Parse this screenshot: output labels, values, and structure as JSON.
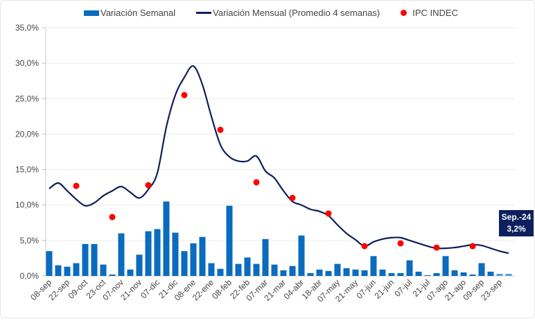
{
  "chart_data": {
    "type": "bar+line+scatter",
    "legend": {
      "placement": "top",
      "bars": "Variación Semanal",
      "line": "Variación Mensual (Promedio 4 semanas)",
      "dots": "IPC INDEC"
    },
    "ylim": [
      0,
      35
    ],
    "yticks": [
      "0,0%",
      "5,0%",
      "10,0%",
      "15,0%",
      "20,0%",
      "25,0%",
      "30,0%",
      "35,0%"
    ],
    "grid": true,
    "xtick_labels": [
      "08-sep",
      "22-sep",
      "09-oct",
      "23-oct",
      "07-nov",
      "21-nov",
      "07-dic",
      "21-dic",
      "08-ene",
      "22-ene",
      "08-feb",
      "22-feb",
      "07-mar",
      "21-mar",
      "04-abr",
      "18-abr",
      "07-may",
      "21-may",
      "07-jun",
      "21-jun",
      "07-jul",
      "21-jul",
      "07-ago",
      "21-ago",
      "09-sep",
      "23-sep"
    ],
    "weekly": [
      3.5,
      1.5,
      1.3,
      1.8,
      4.5,
      4.5,
      1.6,
      0.2,
      6.0,
      0.9,
      3.0,
      6.3,
      6.6,
      10.5,
      6.1,
      3.5,
      4.6,
      5.5,
      1.8,
      1.0,
      9.9,
      1.7,
      2.6,
      1.7,
      5.2,
      1.6,
      0.8,
      1.4,
      5.7,
      0.4,
      0.9,
      0.7,
      1.7,
      1.1,
      0.9,
      0.8,
      2.8,
      0.9,
      0.4,
      0.4,
      2.2,
      0.6,
      0.1,
      0.4,
      2.8,
      0.8,
      0.5,
      0.2,
      1.8,
      0.6,
      0.3,
      0.3
    ],
    "monthly": [
      12.3,
      13.1,
      12.0,
      10.8,
      9.9,
      10.3,
      11.3,
      12.0,
      12.6,
      11.8,
      11.0,
      12.2,
      14.5,
      21.0,
      25.5,
      28.0,
      29.6,
      27.0,
      22.5,
      18.5,
      16.8,
      16.2,
      16.2,
      16.9,
      14.8,
      13.8,
      12.0,
      10.5,
      10.0,
      9.4,
      9.1,
      8.5,
      7.2,
      6.0,
      5.1,
      4.2,
      4.8,
      5.2,
      5.4,
      5.4,
      5.0,
      4.6,
      4.2,
      3.9,
      3.9,
      4.0,
      4.2,
      4.4,
      4.3,
      3.9,
      3.5,
      3.2
    ],
    "ipc": [
      {
        "week": 3,
        "value": 12.7
      },
      {
        "week": 7,
        "value": 8.3
      },
      {
        "week": 11,
        "value": 12.8
      },
      {
        "week": 15,
        "value": 25.5
      },
      {
        "week": 19,
        "value": 20.6
      },
      {
        "week": 23,
        "value": 13.2
      },
      {
        "week": 27,
        "value": 11.0
      },
      {
        "week": 31,
        "value": 8.8
      },
      {
        "week": 35,
        "value": 4.2
      },
      {
        "week": 39,
        "value": 4.6
      },
      {
        "week": 43,
        "value": 4.0
      },
      {
        "week": 47,
        "value": 4.2
      }
    ],
    "annotation": {
      "line1": "Sep.-24",
      "line2": "3,2%"
    },
    "colors": {
      "bars": "#0a6bbf",
      "line": "#0d1f5c",
      "dots": "#ff0000",
      "callout": "#0d1f5c"
    }
  }
}
